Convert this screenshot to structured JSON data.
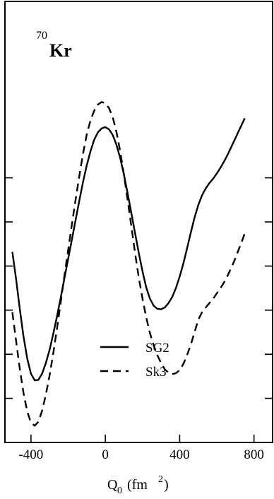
{
  "chart_data": {
    "type": "line",
    "title": {
      "superscript": "70",
      "main": "Kr"
    },
    "xlabel": {
      "main": "Q",
      "subscript": "0",
      "units_prefix": " (fm",
      "units_sup": "2",
      "units_suffix": ")"
    },
    "ylabel": "",
    "xlim": [
      -540,
      900
    ],
    "ylim": [
      0,
      10
    ],
    "x_ticks": [
      -400,
      0,
      400,
      800
    ],
    "x_tick_labels": [
      "-400",
      "0",
      "400",
      "800"
    ],
    "y_ticks": [
      1,
      2,
      3,
      4,
      5,
      6
    ],
    "y_tick_labels": [],
    "grid": false,
    "legend_position": "lower-center",
    "series": [
      {
        "name": "SG2",
        "line_style": "solid",
        "color": "#000000",
        "points": [
          [
            -500,
            4.32
          ],
          [
            -480,
            3.7
          ],
          [
            -460,
            3.02
          ],
          [
            -440,
            2.4
          ],
          [
            -420,
            1.9
          ],
          [
            -400,
            1.56
          ],
          [
            -380,
            1.41
          ],
          [
            -360,
            1.42
          ],
          [
            -340,
            1.56
          ],
          [
            -320,
            1.8
          ],
          [
            -300,
            2.1
          ],
          [
            -280,
            2.46
          ],
          [
            -260,
            2.86
          ],
          [
            -240,
            3.28
          ],
          [
            -220,
            3.72
          ],
          [
            -200,
            4.16
          ],
          [
            -180,
            4.6
          ],
          [
            -160,
            5.04
          ],
          [
            -140,
            5.48
          ],
          [
            -120,
            5.9
          ],
          [
            -100,
            6.28
          ],
          [
            -80,
            6.6
          ],
          [
            -60,
            6.86
          ],
          [
            -40,
            7.03
          ],
          [
            -20,
            7.12
          ],
          [
            0,
            7.15
          ],
          [
            20,
            7.1
          ],
          [
            40,
            6.97
          ],
          [
            60,
            6.75
          ],
          [
            80,
            6.45
          ],
          [
            100,
            6.08
          ],
          [
            120,
            5.65
          ],
          [
            140,
            5.2
          ],
          [
            160,
            4.75
          ],
          [
            180,
            4.3
          ],
          [
            200,
            3.88
          ],
          [
            220,
            3.52
          ],
          [
            240,
            3.26
          ],
          [
            260,
            3.1
          ],
          [
            280,
            3.03
          ],
          [
            300,
            3.02
          ],
          [
            320,
            3.06
          ],
          [
            340,
            3.16
          ],
          [
            360,
            3.3
          ],
          [
            380,
            3.5
          ],
          [
            400,
            3.76
          ],
          [
            420,
            4.06
          ],
          [
            440,
            4.4
          ],
          [
            460,
            4.76
          ],
          [
            480,
            5.1
          ],
          [
            500,
            5.38
          ],
          [
            520,
            5.6
          ],
          [
            540,
            5.76
          ],
          [
            560,
            5.88
          ],
          [
            580,
            5.98
          ],
          [
            600,
            6.1
          ],
          [
            620,
            6.23
          ],
          [
            640,
            6.38
          ],
          [
            660,
            6.54
          ],
          [
            680,
            6.72
          ],
          [
            700,
            6.9
          ],
          [
            720,
            7.08
          ],
          [
            740,
            7.26
          ],
          [
            750,
            7.35
          ]
        ]
      },
      {
        "name": "Sk3",
        "line_style": "dashed",
        "color": "#000000",
        "points": [
          [
            -500,
            2.95
          ],
          [
            -480,
            2.3
          ],
          [
            -460,
            1.66
          ],
          [
            -440,
            1.12
          ],
          [
            -420,
            0.7
          ],
          [
            -400,
            0.45
          ],
          [
            -380,
            0.38
          ],
          [
            -360,
            0.47
          ],
          [
            -340,
            0.72
          ],
          [
            -320,
            1.08
          ],
          [
            -300,
            1.52
          ],
          [
            -280,
            2.02
          ],
          [
            -260,
            2.58
          ],
          [
            -240,
            3.18
          ],
          [
            -220,
            3.78
          ],
          [
            -200,
            4.36
          ],
          [
            -180,
            4.94
          ],
          [
            -160,
            5.5
          ],
          [
            -140,
            6.04
          ],
          [
            -120,
            6.54
          ],
          [
            -100,
            6.98
          ],
          [
            -80,
            7.3
          ],
          [
            -60,
            7.52
          ],
          [
            -40,
            7.66
          ],
          [
            -20,
            7.72
          ],
          [
            0,
            7.69
          ],
          [
            20,
            7.58
          ],
          [
            40,
            7.37
          ],
          [
            60,
            7.04
          ],
          [
            80,
            6.6
          ],
          [
            100,
            6.08
          ],
          [
            120,
            5.5
          ],
          [
            140,
            4.9
          ],
          [
            160,
            4.3
          ],
          [
            180,
            3.74
          ],
          [
            200,
            3.26
          ],
          [
            220,
            2.84
          ],
          [
            240,
            2.48
          ],
          [
            260,
            2.2
          ],
          [
            280,
            1.98
          ],
          [
            300,
            1.8
          ],
          [
            320,
            1.66
          ],
          [
            340,
            1.58
          ],
          [
            360,
            1.55
          ],
          [
            380,
            1.57
          ],
          [
            400,
            1.64
          ],
          [
            420,
            1.78
          ],
          [
            440,
            1.98
          ],
          [
            460,
            2.22
          ],
          [
            480,
            2.5
          ],
          [
            500,
            2.78
          ],
          [
            520,
            2.95
          ],
          [
            540,
            3.06
          ],
          [
            560,
            3.16
          ],
          [
            580,
            3.26
          ],
          [
            600,
            3.38
          ],
          [
            620,
            3.5
          ],
          [
            640,
            3.64
          ],
          [
            660,
            3.8
          ],
          [
            680,
            3.98
          ],
          [
            700,
            4.18
          ],
          [
            720,
            4.4
          ],
          [
            740,
            4.62
          ],
          [
            750,
            4.74
          ]
        ]
      }
    ]
  }
}
